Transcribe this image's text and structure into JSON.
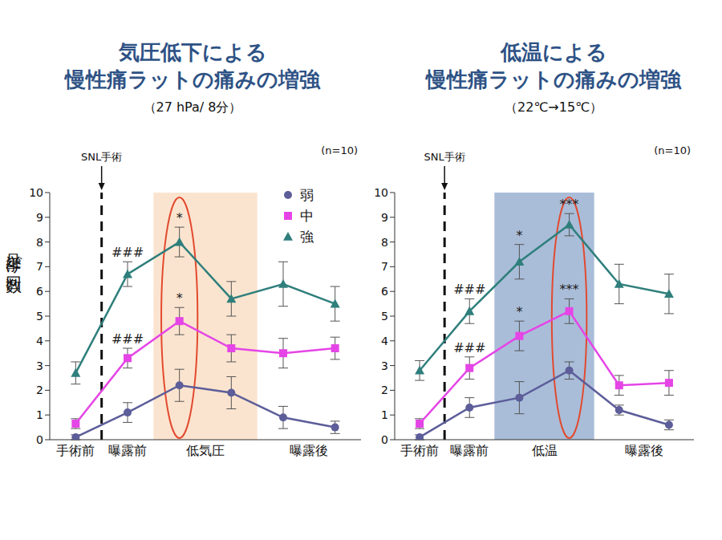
{
  "chart_data": [
    {
      "type": "line",
      "title": [
        "気圧低下による",
        "慢性痛ラットの痛みの増強"
      ],
      "subtitle": "（27 hPa/ 8分）",
      "note": "(n=10)",
      "y_label": "足挙げ回数",
      "x": [
        0,
        1,
        2,
        3,
        4,
        5
      ],
      "xlim": [
        -0.5,
        5.5
      ],
      "xticks": [
        {
          "value": 0,
          "label": "手術前"
        },
        {
          "value": 1,
          "label": "曝露前"
        },
        {
          "value": 2.5,
          "label": "低気圧"
        },
        {
          "value": 4.5,
          "label": "曝露後"
        }
      ],
      "ylim": [
        0,
        10
      ],
      "yticks": [
        0,
        1,
        2,
        3,
        4,
        5,
        6,
        7,
        8,
        9,
        10
      ],
      "grid": false,
      "legend": "upper right",
      "event": {
        "x": 0.5,
        "label": "SNL手術"
      },
      "shade": {
        "x": [
          1.5,
          3.5
        ],
        "color": "#fbe4cf"
      },
      "highlight": {
        "index": 2,
        "color": "#e24a2f"
      },
      "series": [
        {
          "name": "弱",
          "color": "#5c5d99",
          "marker": "circle",
          "values": [
            0.1,
            1.1,
            2.2,
            1.9,
            0.9,
            0.5
          ],
          "errors": [
            0.1,
            0.4,
            0.65,
            0.65,
            0.45,
            0.25
          ]
        },
        {
          "name": "中",
          "color": "#e545e6",
          "marker": "square",
          "values": [
            0.65,
            3.3,
            4.8,
            3.7,
            3.5,
            3.7
          ],
          "errors": [
            0.2,
            0.4,
            0.55,
            0.55,
            0.6,
            0.45
          ]
        },
        {
          "name": "強",
          "color": "#2f7f7c",
          "marker": "triangle",
          "values": [
            2.7,
            6.7,
            8.0,
            5.7,
            6.3,
            5.5
          ],
          "errors": [
            0.45,
            0.5,
            0.6,
            0.7,
            0.9,
            0.7
          ]
        }
      ],
      "annotations": [
        {
          "series": "強",
          "index": 1,
          "text": "###"
        },
        {
          "series": "中",
          "index": 1,
          "text": "###"
        },
        {
          "series": "強",
          "index": 2,
          "text": "*"
        },
        {
          "series": "中",
          "index": 2,
          "text": "*"
        }
      ]
    },
    {
      "type": "line",
      "title": [
        "低温による",
        "慢性痛ラットの痛みの増強"
      ],
      "subtitle": "（22℃→15℃）",
      "note": "(n=10)",
      "x": [
        0,
        1,
        2,
        3,
        4,
        5
      ],
      "xlim": [
        -0.5,
        5.5
      ],
      "xticks": [
        {
          "value": 0,
          "label": "手術前"
        },
        {
          "value": 1,
          "label": "曝露前"
        },
        {
          "value": 2.5,
          "label": "低温"
        },
        {
          "value": 4.5,
          "label": "曝露後"
        }
      ],
      "ylim": [
        0,
        10
      ],
      "yticks": [
        0,
        1,
        2,
        3,
        4,
        5,
        6,
        7,
        8,
        9,
        10
      ],
      "grid": false,
      "event": {
        "x": 0.5,
        "label": "SNL手術"
      },
      "shade": {
        "x": [
          1.5,
          3.5
        ],
        "color": "#a9bdd9"
      },
      "highlight": {
        "index": 3,
        "color": "#e24a2f"
      },
      "series": [
        {
          "name": "弱",
          "color": "#5c5d99",
          "marker": "circle",
          "values": [
            0.1,
            1.3,
            1.7,
            2.8,
            1.2,
            0.6
          ],
          "errors": [
            0.1,
            0.4,
            0.65,
            0.35,
            0.2,
            0.2
          ]
        },
        {
          "name": "中",
          "color": "#e545e6",
          "marker": "square",
          "values": [
            0.65,
            2.9,
            4.2,
            5.2,
            2.2,
            2.3
          ],
          "errors": [
            0.2,
            0.45,
            0.6,
            0.5,
            0.4,
            0.5
          ]
        },
        {
          "name": "強",
          "color": "#2f7f7c",
          "marker": "triangle",
          "values": [
            2.8,
            5.2,
            7.2,
            8.7,
            6.3,
            5.9
          ],
          "errors": [
            0.4,
            0.5,
            0.7,
            0.45,
            0.8,
            0.8
          ]
        }
      ],
      "annotations": [
        {
          "series": "強",
          "index": 1,
          "text": "###"
        },
        {
          "series": "中",
          "index": 1,
          "text": "###"
        },
        {
          "series": "強",
          "index": 2,
          "text": "*"
        },
        {
          "series": "中",
          "index": 2,
          "text": "*"
        },
        {
          "series": "強",
          "index": 3,
          "text": "***"
        },
        {
          "series": "中",
          "index": 3,
          "text": "***"
        }
      ]
    }
  ]
}
